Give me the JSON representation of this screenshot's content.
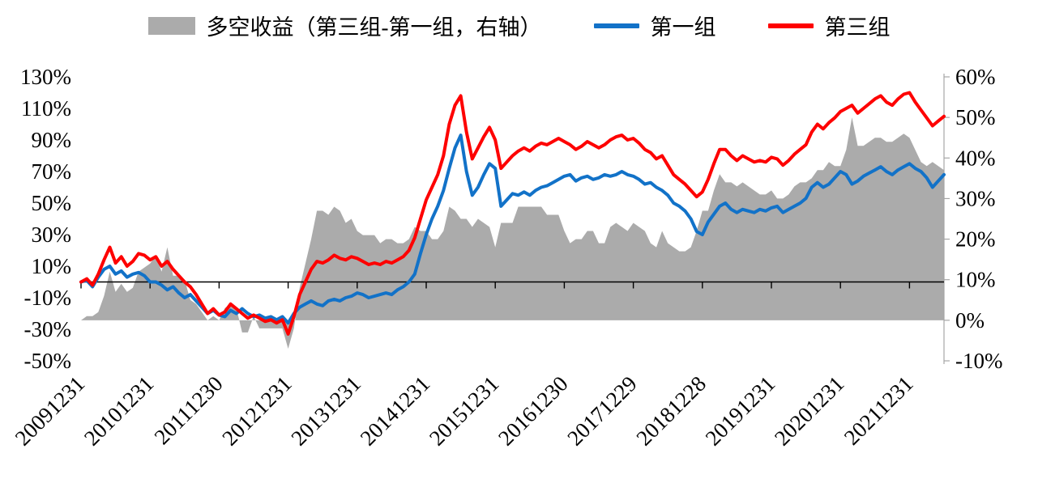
{
  "chart_data": {
    "type": "line",
    "title": "",
    "legend": {
      "spread": "多空收益（第三组-第一组，右轴）",
      "first": "第一组",
      "third": "第三组"
    },
    "colors": {
      "spread_area": "#ABABAB",
      "first_group": "#1272C8",
      "third_group": "#FE0000",
      "axis_line": "#A6A6A6",
      "zero_line": "#000000"
    },
    "left_axis": {
      "min": -50,
      "max": 130,
      "ticks": [
        130,
        110,
        90,
        70,
        50,
        30,
        10,
        -10,
        -30,
        -50
      ],
      "tick_labels": [
        "130%",
        "110%",
        "90%",
        "70%",
        "50%",
        "30%",
        "10%",
        "-10%",
        "-30%",
        "-50%"
      ]
    },
    "right_axis": {
      "min": -10,
      "max": 60,
      "ticks": [
        60,
        50,
        40,
        30,
        20,
        10,
        0,
        -10
      ],
      "tick_labels": [
        "60%",
        "50%",
        "40%",
        "30%",
        "20%",
        "10%",
        "0%",
        "-10%"
      ]
    },
    "x_tick_labels": [
      "20091231",
      "20101231",
      "20111230",
      "20121231",
      "20131231",
      "20141231",
      "20151231",
      "20161230",
      "20171229",
      "20181228",
      "20191231",
      "20201231",
      "20211231"
    ],
    "x_tick_indices": [
      0,
      12,
      24,
      36,
      48,
      60,
      72,
      84,
      96,
      108,
      120,
      132,
      144
    ],
    "spread_note": "gray area = third_group minus first_group, plotted on right axis",
    "series": {
      "first_group": [
        0,
        1,
        -3,
        3,
        8,
        10,
        5,
        7,
        3,
        5,
        6,
        4,
        0,
        0,
        -2,
        -5,
        -3,
        -7,
        -10,
        -8,
        -12,
        -16,
        -20,
        -18,
        -21,
        -22,
        -18,
        -20,
        -17,
        -20,
        -22,
        -21,
        -23,
        -22,
        -24,
        -22,
        -26,
        -20,
        -16,
        -14,
        -12,
        -14,
        -15,
        -12,
        -11,
        -12,
        -10,
        -9,
        -7,
        -8,
        -10,
        -9,
        -8,
        -7,
        -8,
        -5,
        -3,
        0,
        5,
        18,
        30,
        40,
        48,
        58,
        72,
        85,
        93,
        70,
        55,
        60,
        68,
        75,
        72,
        48,
        52,
        56,
        55,
        57,
        55,
        58,
        60,
        61,
        63,
        65,
        67,
        68,
        64,
        66,
        67,
        65,
        66,
        68,
        67,
        68,
        70,
        68,
        67,
        65,
        62,
        63,
        60,
        58,
        55,
        50,
        48,
        45,
        40,
        32,
        30,
        38,
        43,
        48,
        50,
        46,
        44,
        46,
        45,
        44,
        46,
        45,
        47,
        48,
        44,
        46,
        48,
        50,
        53,
        60,
        63,
        60,
        62,
        66,
        70,
        68,
        62,
        64,
        67,
        69,
        71,
        73,
        70,
        68,
        71,
        73,
        75,
        72,
        70,
        66,
        60,
        64,
        68
      ],
      "third_group": [
        0,
        2,
        -2,
        5,
        14,
        22,
        12,
        16,
        10,
        13,
        18,
        17,
        14,
        16,
        10,
        13,
        8,
        4,
        0,
        -3,
        -8,
        -14,
        -20,
        -17,
        -21,
        -19,
        -14,
        -17,
        -20,
        -23,
        -21,
        -23,
        -25,
        -24,
        -26,
        -24,
        -33,
        -22,
        -8,
        0,
        8,
        13,
        12,
        14,
        17,
        15,
        14,
        16,
        15,
        13,
        11,
        12,
        11,
        13,
        12,
        14,
        16,
        20,
        28,
        40,
        52,
        60,
        68,
        80,
        100,
        112,
        118,
        95,
        78,
        85,
        92,
        98,
        90,
        72,
        76,
        80,
        83,
        85,
        83,
        86,
        88,
        87,
        89,
        91,
        89,
        87,
        84,
        86,
        89,
        87,
        85,
        87,
        90,
        92,
        93,
        90,
        91,
        88,
        84,
        82,
        78,
        80,
        74,
        68,
        65,
        62,
        58,
        54,
        57,
        65,
        75,
        84,
        84,
        80,
        77,
        80,
        78,
        76,
        77,
        76,
        79,
        78,
        74,
        77,
        81,
        84,
        87,
        95,
        100,
        97,
        101,
        104,
        108,
        110,
        112,
        107,
        110,
        113,
        116,
        118,
        114,
        112,
        116,
        119,
        120,
        114,
        109,
        104,
        99,
        102,
        105
      ]
    }
  }
}
